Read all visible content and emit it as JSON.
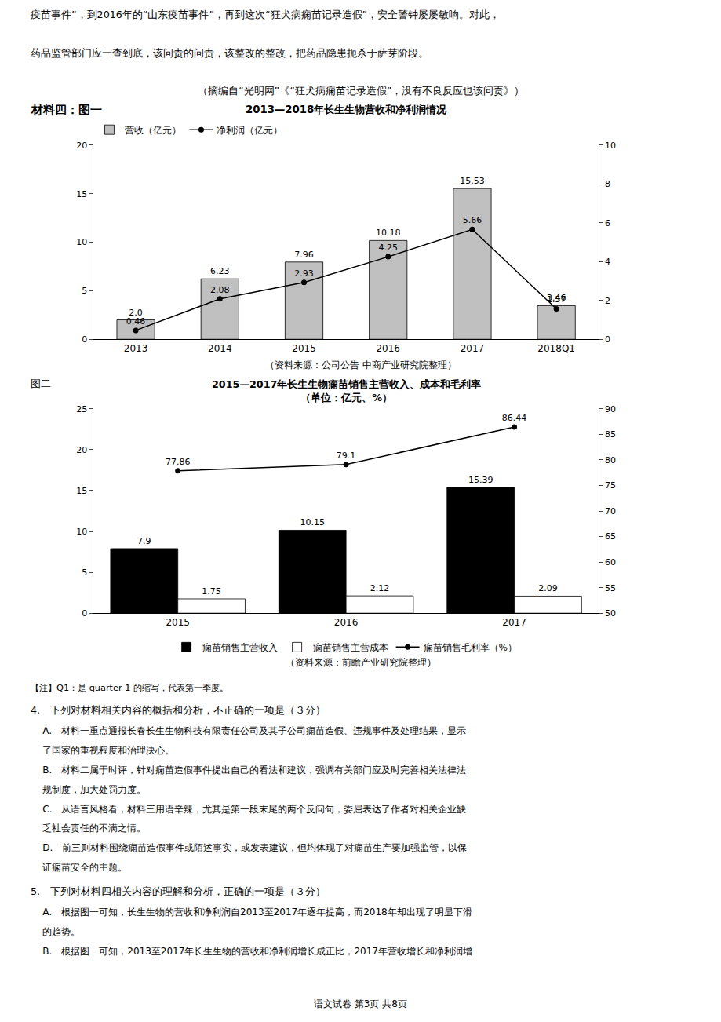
{
  "header": [
    "疫苗事件”，到2016年的“山东疫苗事件”，再到这次“狂犬病痫苗记录造假”，安全警钟屡屡敏响。对此，",
    "药品监管部门应一查到底，该问责的问责，该整改的整改，把药品隐患扼杀于萨芽阶段。",
    "（摘编自“光明网”《“狂犬病痫苗记录造假”，没有不良反应也该问责》）"
  ],
  "section_label": "材料四：图一",
  "figure_label": "图二",
  "chart_data": [
    {
      "type": "bar",
      "title": "2013—2018年长生生物营收和净利润情况",
      "categories": [
        "2013",
        "2014",
        "2015",
        "2016",
        "2017",
        "2018Q1"
      ],
      "series": [
        {
          "name": "营收（亿元）",
          "type": "bar",
          "color": "#c0c0c0",
          "values": [
            2.0,
            6.23,
            7.96,
            10.18,
            15.53,
            3.46
          ],
          "value_labels": [
            "2.0",
            "6.23",
            "7.96",
            "10.18",
            "15.53",
            "3.46"
          ]
        },
        {
          "name": "净利润（亿元）",
          "type": "line",
          "axis": "y2",
          "color": "#000000",
          "marker": "circle",
          "values": [
            0.46,
            2.08,
            2.93,
            4.25,
            5.66,
            1.57
          ]
        }
      ],
      "ylim": [
        0,
        20
      ],
      "yticks": [
        0,
        5,
        10,
        15,
        20
      ],
      "y2lim": [
        0,
        10
      ],
      "y2ticks": [
        0,
        2,
        4,
        6,
        8,
        10
      ],
      "grid": false,
      "legend": "upper left",
      "data_labels": true,
      "annotations": [
        "（资料来源：公司公告 中商产业研究院整理）"
      ]
    },
    {
      "type": "bar",
      "title": "2015—2017年长生生物痫苗销售主营收入、成本和毛利率",
      "subtitle": "（单位：亿元、%）",
      "categories": [
        "2015",
        "2016",
        "2017"
      ],
      "series": [
        {
          "name": "痫苗销售主营收入",
          "type": "bar",
          "color": "#000000",
          "values": [
            7.9,
            10.15,
            15.39
          ]
        },
        {
          "name": "痫苗销售主营成本",
          "type": "bar",
          "color": "#ffffff",
          "values": [
            1.75,
            2.12,
            2.09
          ]
        },
        {
          "name": "痫苗销售毛利率（%）",
          "type": "line",
          "axis": "y2",
          "color": "#000000",
          "marker": "circle",
          "values": [
            77.86,
            79.1,
            86.44
          ]
        }
      ],
      "ylim": [
        0,
        25
      ],
      "yticks": [
        0,
        5,
        10,
        15,
        20,
        25
      ],
      "y2lim": [
        50,
        90
      ],
      "y2ticks": [
        50,
        55,
        60,
        65,
        70,
        75,
        80,
        85,
        90
      ],
      "grid": false,
      "legend": "lower center",
      "data_labels": true,
      "annotations": [
        "（资料来源：前瞻产业研究院整理）"
      ]
    }
  ],
  "body": [
    "【注】Q1：是 quarter 1 的缩写，代表第一季度。",
    "4.　下列对材料相关内容的概括和分析，不正确的一项是（３分）",
    "    A.　材料一重点通报长春长生生物科技有限责任公司及其子公司痫苗造假、违规事件及处理结果，显示",
    "    了国家的重视程度和治理决心。",
    "    B.　材料二属于时评，针对痫苗造假事件提出自己的看法和建议，强调有关部门应及时完善相关法律法",
    "    规制度，加大处罚力度。",
    "    C.　从语言风格看，材料三用语辛辣，尤其是第一段末尾的两个反问句，委屈表达了作者对相关企业缺",
    "    乏社会责任的不满之情。",
    "    D.　前三则材料围绕痫苗造假事件或陌述事实，或发表建议，但均体现了对痫苗生产要加强监管，以保",
    "    证痫苗安全的主题。",
    "5.　下列对材料四相关内容的理解和分析，正确的一项是（３分）",
    "    A.　根据图一可知，长生生物的营收和净利润自2013至2017年逐年提高，而2018年却出现了明显下滑",
    "    的趋势。",
    "    B.　根据图一可知，2013至2017年长生生物的营收和净利润增长成正比，2017年营收增长和净利润增"
  ],
  "footer": "语文试卷 第3页 共8页"
}
